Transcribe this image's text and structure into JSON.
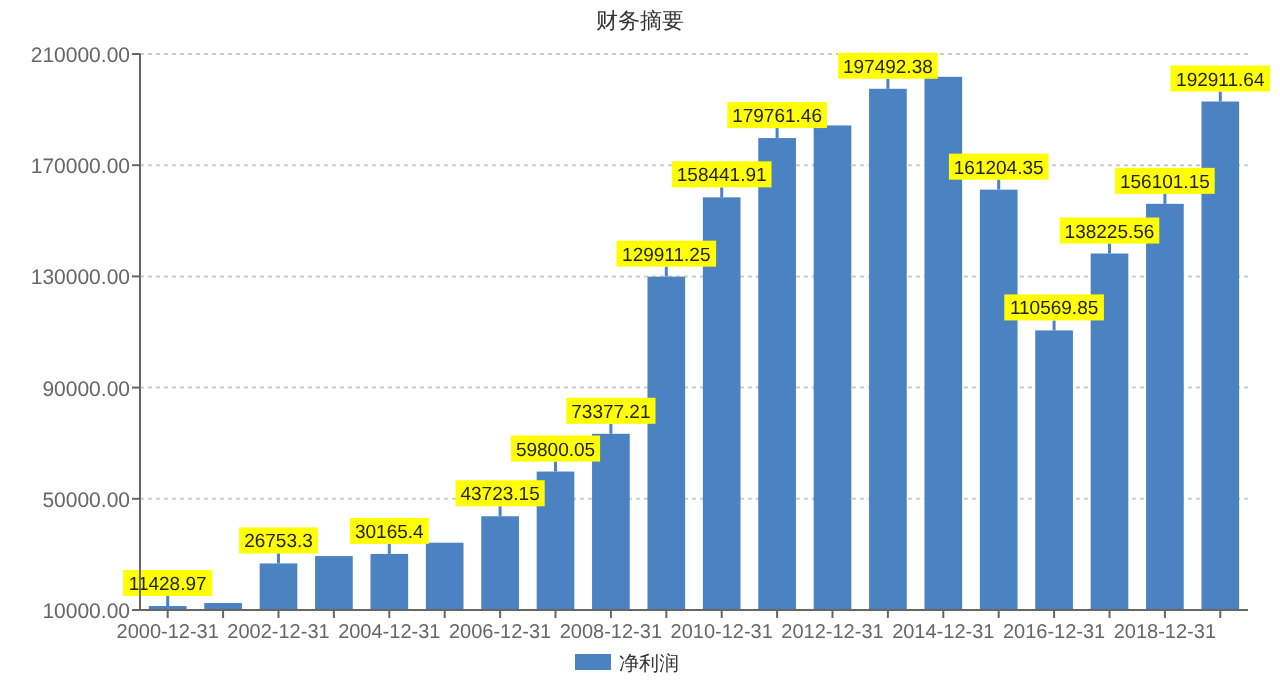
{
  "chart_data": {
    "type": "bar",
    "title": "财务摘要",
    "categories": [
      "2000-12-31",
      null,
      "2002-12-31",
      null,
      "2004-12-31",
      null,
      "2006-12-31",
      null,
      "2008-12-31",
      null,
      "2010-12-31",
      null,
      "2012-12-31",
      null,
      "2014-12-31",
      null,
      "2016-12-31",
      null,
      "2018-12-31",
      null
    ],
    "series": [
      {
        "name": "净利润",
        "color": "#4a82c2",
        "values": [
          11428.97,
          12500,
          26753.3,
          29400,
          30165.4,
          34200,
          43723.15,
          59800.05,
          73377.21,
          129911.25,
          158441.91,
          179761.46,
          184300,
          197492.38,
          201800,
          161204.35,
          110569.85,
          138225.56,
          156101.15,
          192911.64
        ],
        "value_labels": [
          "11428.97",
          null,
          "26753.3",
          null,
          "30165.4",
          null,
          "43723.15",
          "59800.05",
          "73377.21",
          "129911.25",
          "158441.91",
          "179761.46",
          null,
          "197492.38",
          null,
          "161204.35",
          "110569.85",
          "138225.56",
          "156101.15",
          "192911.64"
        ]
      }
    ],
    "ylim": [
      10000,
      210000
    ],
    "yticks": [
      {
        "value": 10000,
        "label": "10000.00"
      },
      {
        "value": 50000,
        "label": "50000.00"
      },
      {
        "value": 90000,
        "label": "90000.00"
      },
      {
        "value": 130000,
        "label": "130000.00"
      },
      {
        "value": 170000,
        "label": "170000.00"
      },
      {
        "value": 210000,
        "label": "210000.00"
      }
    ],
    "grid": "y",
    "legend": "bottom"
  }
}
